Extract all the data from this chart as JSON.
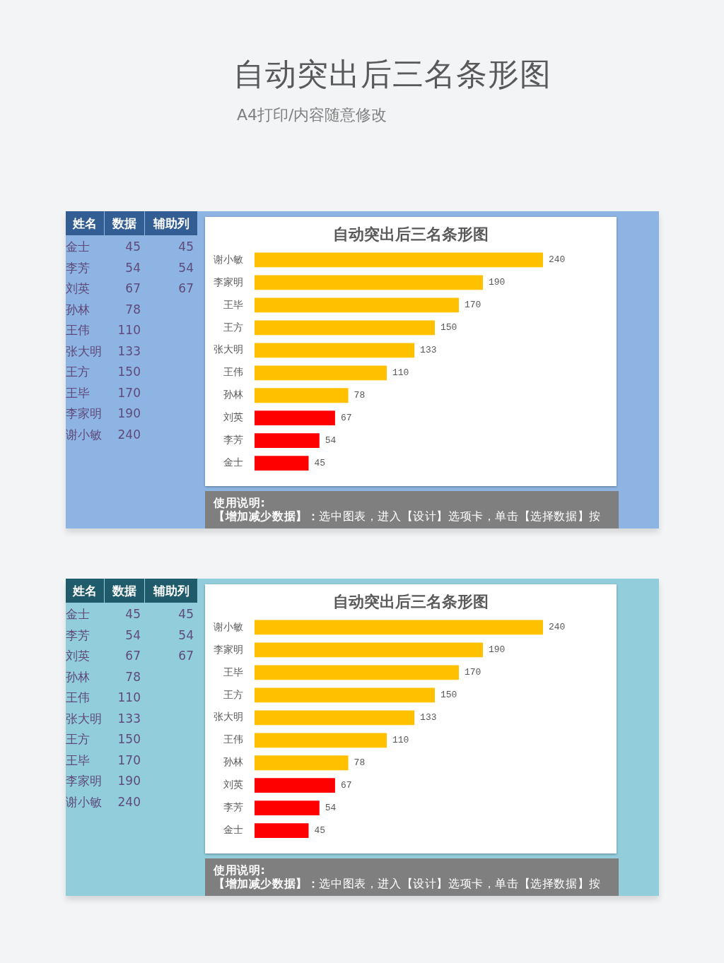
{
  "chart_data": [
    {
      "type": "other",
      "title": "自动突出后三名条形图",
      "subtitle": "A4打印/内容随意修改"
    },
    {
      "type": "heatmap",
      "ylabel": "姓名",
      "categories": [
        "数据",
        "辅助列"
      ],
      "y_categories": [
        "金士",
        "李芳",
        "刘英",
        "孙林",
        "王伟",
        "张大明",
        "王方",
        "王毕",
        "李家明",
        "谢小敏"
      ],
      "cells": [
        [
          45,
          45
        ],
        [
          54,
          54
        ],
        [
          67,
          67
        ],
        [
          78,
          null
        ],
        [
          110,
          null
        ],
        [
          133,
          null
        ],
        [
          150,
          null
        ],
        [
          170,
          null
        ],
        [
          190,
          null
        ],
        [
          240,
          null
        ]
      ],
      "data_labels": true
    },
    {
      "type": "bar",
      "orientation": "horizontal",
      "title": "自动突出后三名条形图",
      "categories": [
        "谢小敏",
        "李家明",
        "王毕",
        "王方",
        "张大明",
        "王伟",
        "孙林",
        "刘英",
        "李芳",
        "金士"
      ],
      "values": [
        240,
        190,
        170,
        150,
        133,
        110,
        78,
        67,
        54,
        45
      ],
      "colors": [
        "#ffc000",
        "#ffc000",
        "#ffc000",
        "#ffc000",
        "#ffc000",
        "#ffc000",
        "#ffc000",
        "#ff0000",
        "#ff0000",
        "#ff0000"
      ],
      "xlim": [
        0,
        300
      ],
      "tick_labels": "y",
      "data_labels": true,
      "annotations": [
        "使用说明:",
        "【增加减少数据】：",
        "选中图表，进入【设计】选项卡，单击【选择数据】按"
      ]
    },
    {
      "type": "heatmap",
      "ylabel": "姓名",
      "categories": [
        "数据",
        "辅助列"
      ],
      "y_categories": [
        "金士",
        "李芳",
        "刘英",
        "孙林",
        "王伟",
        "张大明",
        "王方",
        "王毕",
        "李家明",
        "谢小敏"
      ],
      "cells": [
        [
          45,
          45
        ],
        [
          54,
          54
        ],
        [
          67,
          67
        ],
        [
          78,
          null
        ],
        [
          110,
          null
        ],
        [
          133,
          null
        ],
        [
          150,
          null
        ],
        [
          170,
          null
        ],
        [
          190,
          null
        ],
        [
          240,
          null
        ]
      ],
      "data_labels": true
    },
    {
      "type": "bar",
      "orientation": "horizontal",
      "title": "自动突出后三名条形图",
      "categories": [
        "谢小敏",
        "李家明",
        "王毕",
        "王方",
        "张大明",
        "王伟",
        "孙林",
        "刘英",
        "李芳",
        "金士"
      ],
      "values": [
        240,
        190,
        170,
        150,
        133,
        110,
        78,
        67,
        54,
        45
      ],
      "colors": [
        "#ffc000",
        "#ffc000",
        "#ffc000",
        "#ffc000",
        "#ffc000",
        "#ffc000",
        "#ffc000",
        "#ff0000",
        "#ff0000",
        "#ff0000"
      ],
      "xlim": [
        0,
        300
      ],
      "tick_labels": "y",
      "data_labels": true,
      "annotations": [
        "使用说明:",
        "【增加减少数据】：",
        "选中图表，进入【设计】选项卡，单击【选择数据】按"
      ]
    }
  ]
}
